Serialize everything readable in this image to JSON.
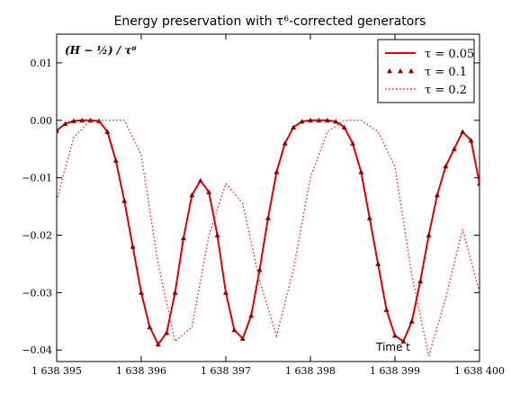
{
  "chart_data": {
    "type": "line",
    "title": "Energy preservation with τ⁶-corrected generators",
    "annotation": "(H − ½) / τ⁸",
    "xlabel": "Time t",
    "xlim": [
      1638395,
      1638400
    ],
    "ylim": [
      -0.042,
      0.015
    ],
    "xticks": [
      1638395,
      1638396,
      1638397,
      1638398,
      1638399,
      1638400
    ],
    "xtick_labels": [
      "1 638 395",
      "1 638 396",
      "1 638 397",
      "1 638 398",
      "1 638 399",
      "1 638 400"
    ],
    "yticks": [
      0.01,
      0.0,
      -0.01,
      -0.02,
      -0.03,
      -0.04
    ],
    "ytick_labels": [
      "0.01",
      "0.00",
      "−0.01",
      "−0.02",
      "−0.03",
      "−0.04"
    ],
    "grid": false,
    "legend_position": "top-right",
    "series": [
      {
        "name": "τ = 0.05",
        "style": "solid",
        "color": "#dd0000",
        "x": [
          1638395.0,
          1638395.1,
          1638395.2,
          1638395.3,
          1638395.4,
          1638395.5,
          1638395.6,
          1638395.7,
          1638395.8,
          1638395.9,
          1638396.0,
          1638396.1,
          1638396.2,
          1638396.3,
          1638396.4,
          1638396.5,
          1638396.6,
          1638396.7,
          1638396.8,
          1638396.9,
          1638397.0,
          1638397.1,
          1638397.2,
          1638397.3,
          1638397.4,
          1638397.5,
          1638397.6,
          1638397.7,
          1638397.8,
          1638397.9,
          1638398.0,
          1638398.1,
          1638398.2,
          1638398.3,
          1638398.4,
          1638398.5,
          1638398.6,
          1638398.7,
          1638398.8,
          1638398.9,
          1638399.0,
          1638399.1,
          1638399.2,
          1638399.3,
          1638399.4,
          1638399.5,
          1638399.6,
          1638399.7,
          1638399.8,
          1638399.9,
          1638400.0
        ],
        "y": [
          -0.0018,
          -0.0006,
          -0.0001,
          0.0,
          0.0,
          -0.0001,
          -0.002,
          -0.007,
          -0.014,
          -0.022,
          -0.03,
          -0.036,
          -0.039,
          -0.037,
          -0.03,
          -0.0205,
          -0.013,
          -0.0105,
          -0.0125,
          -0.02,
          -0.03,
          -0.0365,
          -0.038,
          -0.034,
          -0.026,
          -0.017,
          -0.009,
          -0.004,
          -0.0012,
          -0.0002,
          0.0,
          0.0,
          0.0,
          -0.0002,
          -0.0012,
          -0.004,
          -0.009,
          -0.017,
          -0.025,
          -0.033,
          -0.0375,
          -0.0385,
          -0.035,
          -0.028,
          -0.02,
          -0.013,
          -0.008,
          -0.005,
          -0.002,
          -0.0035,
          -0.011
        ]
      },
      {
        "name": "τ = 0.1",
        "style": "marker",
        "color": "#8b0000",
        "x": [
          1638395.0,
          1638395.1,
          1638395.2,
          1638395.3,
          1638395.4,
          1638395.5,
          1638395.6,
          1638395.7,
          1638395.8,
          1638395.9,
          1638396.0,
          1638396.1,
          1638396.2,
          1638396.3,
          1638396.4,
          1638396.5,
          1638396.6,
          1638396.7,
          1638396.8,
          1638396.9,
          1638397.0,
          1638397.1,
          1638397.2,
          1638397.3,
          1638397.4,
          1638397.5,
          1638397.6,
          1638397.7,
          1638397.8,
          1638397.9,
          1638398.0,
          1638398.1,
          1638398.2,
          1638398.3,
          1638398.4,
          1638398.5,
          1638398.6,
          1638398.7,
          1638398.8,
          1638398.9,
          1638399.0,
          1638399.1,
          1638399.2,
          1638399.3,
          1638399.4,
          1638399.5,
          1638399.6,
          1638399.7,
          1638399.8,
          1638399.9,
          1638400.0
        ],
        "y": [
          -0.0018,
          -0.0006,
          -0.0001,
          0.0,
          0.0,
          -0.0001,
          -0.002,
          -0.007,
          -0.014,
          -0.022,
          -0.03,
          -0.036,
          -0.039,
          -0.037,
          -0.03,
          -0.0205,
          -0.013,
          -0.0105,
          -0.0125,
          -0.02,
          -0.03,
          -0.0365,
          -0.038,
          -0.034,
          -0.026,
          -0.017,
          -0.009,
          -0.004,
          -0.0012,
          -0.0002,
          0.0,
          0.0,
          0.0,
          -0.0002,
          -0.0012,
          -0.004,
          -0.009,
          -0.017,
          -0.025,
          -0.033,
          -0.0375,
          -0.0385,
          -0.035,
          -0.028,
          -0.02,
          -0.013,
          -0.008,
          -0.005,
          -0.002,
          -0.0035,
          -0.011
        ]
      },
      {
        "name": "τ = 0.2",
        "style": "dotted",
        "color": "#ee2222",
        "x": [
          1638395.0,
          1638395.2,
          1638395.4,
          1638395.6,
          1638395.8,
          1638396.0,
          1638396.2,
          1638396.4,
          1638396.6,
          1638396.8,
          1638397.0,
          1638397.2,
          1638397.4,
          1638397.6,
          1638397.8,
          1638398.0,
          1638398.2,
          1638398.4,
          1638398.6,
          1638398.8,
          1638399.0,
          1638399.2,
          1638399.4,
          1638399.6,
          1638399.8,
          1638400.0
        ],
        "y": [
          -0.014,
          -0.003,
          0.0,
          0.0,
          0.0,
          -0.006,
          -0.025,
          -0.0385,
          -0.036,
          -0.02,
          -0.011,
          -0.0145,
          -0.028,
          -0.0375,
          -0.026,
          -0.01,
          -0.002,
          0.0,
          0.0,
          -0.002,
          -0.008,
          -0.027,
          -0.041,
          -0.031,
          -0.019,
          -0.03
        ]
      }
    ]
  }
}
